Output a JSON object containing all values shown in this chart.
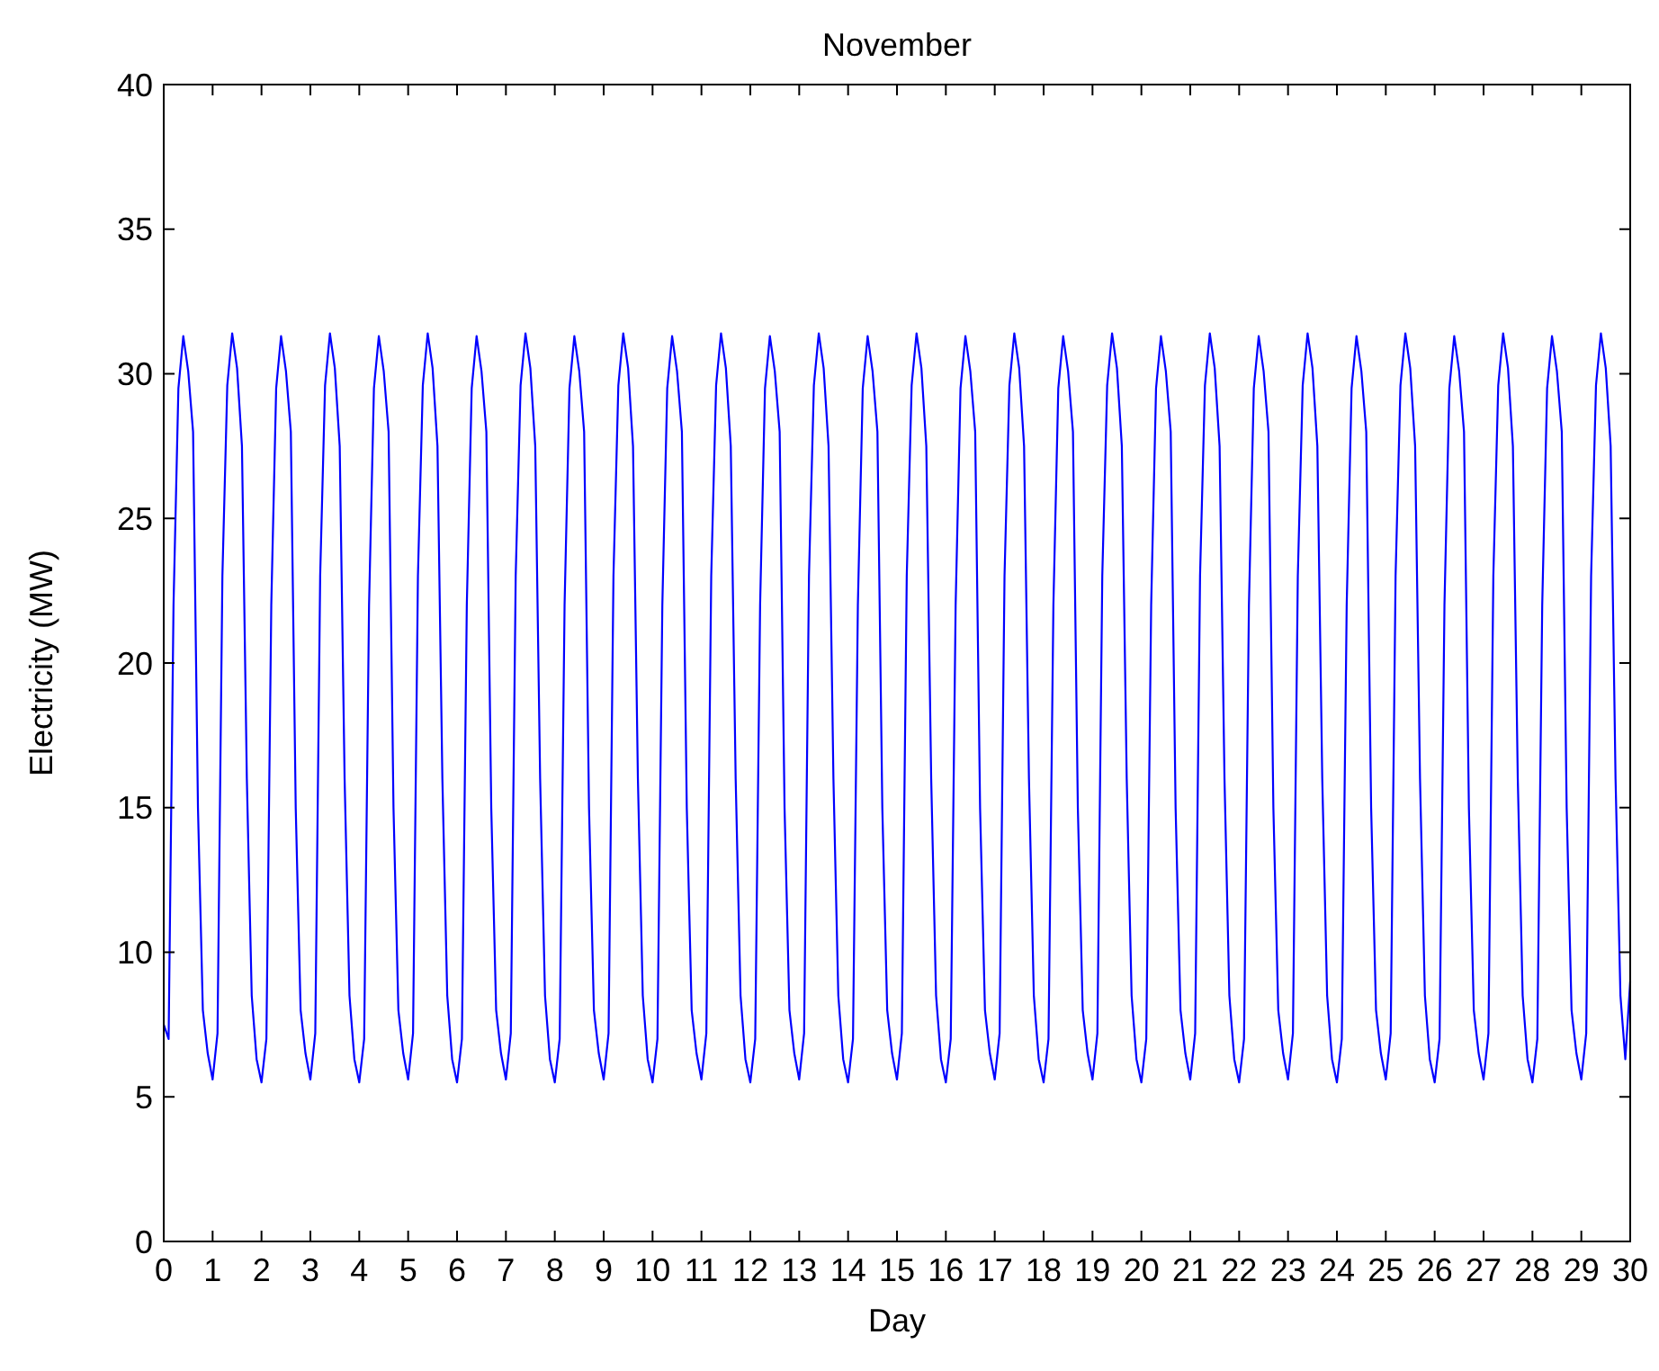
{
  "chart_data": {
    "type": "line",
    "title": "November",
    "xlabel": "Day",
    "ylabel": "Electricity (MW)",
    "xlim": [
      0,
      30
    ],
    "xticks": [
      0,
      1,
      2,
      3,
      4,
      5,
      6,
      7,
      8,
      9,
      10,
      11,
      12,
      13,
      14,
      15,
      16,
      17,
      18,
      19,
      20,
      21,
      22,
      23,
      24,
      25,
      26,
      27,
      28,
      29,
      30
    ],
    "ylim": [
      0,
      40
    ],
    "yticks": [
      0,
      5,
      10,
      15,
      20,
      25,
      30,
      35,
      40
    ],
    "grid": false,
    "line_style": "solid",
    "marker": "none",
    "series": [
      {
        "color": "#0000ff",
        "x": [
          0,
          0.1,
          0.2,
          0.3,
          0.4,
          0.5,
          0.6,
          0.7,
          0.8,
          0.9,
          1,
          1.1,
          1.2,
          1.3,
          1.4,
          1.5,
          1.6,
          1.7,
          1.8,
          1.9,
          2,
          2.1,
          2.2,
          2.3,
          2.4,
          2.5,
          2.6,
          2.7,
          2.8,
          2.9,
          3,
          3.1,
          3.2,
          3.3,
          3.4,
          3.5,
          3.6,
          3.7,
          3.8,
          3.9,
          4,
          4.1,
          4.2,
          4.3,
          4.4,
          4.5,
          4.6,
          4.7,
          4.8,
          4.9,
          5,
          5.1,
          5.2,
          5.3,
          5.4,
          5.5,
          5.6,
          5.7,
          5.8,
          5.9,
          6,
          6.1,
          6.2,
          6.3,
          6.4,
          6.5,
          6.6,
          6.7,
          6.8,
          6.9,
          7,
          7.1,
          7.2,
          7.3,
          7.4,
          7.5,
          7.6,
          7.7,
          7.8,
          7.9,
          8,
          8.1,
          8.2,
          8.3,
          8.4,
          8.5,
          8.6,
          8.7,
          8.8,
          8.9,
          9,
          9.1,
          9.2,
          9.3,
          9.4,
          9.5,
          9.6,
          9.7,
          9.8,
          9.9,
          10,
          10.1,
          10.2,
          10.3,
          10.4,
          10.5,
          10.6,
          10.7,
          10.8,
          10.9,
          11,
          11.1,
          11.2,
          11.3,
          11.4,
          11.5,
          11.6,
          11.7,
          11.8,
          11.9,
          12,
          12.1,
          12.2,
          12.3,
          12.4,
          12.5,
          12.6,
          12.7,
          12.8,
          12.9,
          13,
          13.1,
          13.2,
          13.3,
          13.4,
          13.5,
          13.6,
          13.7,
          13.8,
          13.9,
          14,
          14.1,
          14.2,
          14.3,
          14.4,
          14.5,
          14.6,
          14.7,
          14.8,
          14.9,
          15,
          15.1,
          15.2,
          15.3,
          15.4,
          15.5,
          15.6,
          15.7,
          15.8,
          15.9,
          16,
          16.1,
          16.2,
          16.3,
          16.4,
          16.5,
          16.6,
          16.7,
          16.8,
          16.9,
          17,
          17.1,
          17.2,
          17.3,
          17.4,
          17.5,
          17.6,
          17.7,
          17.8,
          17.9,
          18,
          18.1,
          18.2,
          18.3,
          18.4,
          18.5,
          18.6,
          18.7,
          18.8,
          18.9,
          19,
          19.1,
          19.2,
          19.3,
          19.4,
          19.5,
          19.6,
          19.7,
          19.8,
          19.9,
          20,
          20.1,
          20.2,
          20.3,
          20.4,
          20.5,
          20.6,
          20.7,
          20.8,
          20.9,
          21,
          21.1,
          21.2,
          21.3,
          21.4,
          21.5,
          21.6,
          21.7,
          21.8,
          21.9,
          22,
          22.1,
          22.2,
          22.3,
          22.4,
          22.5,
          22.6,
          22.7,
          22.8,
          22.9,
          23,
          23.1,
          23.2,
          23.3,
          23.4,
          23.5,
          23.6,
          23.7,
          23.8,
          23.9,
          24,
          24.1,
          24.2,
          24.3,
          24.4,
          24.5,
          24.6,
          24.7,
          24.8,
          24.9,
          25,
          25.1,
          25.2,
          25.3,
          25.4,
          25.5,
          25.6,
          25.7,
          25.8,
          25.9,
          26,
          26.1,
          26.2,
          26.3,
          26.4,
          26.5,
          26.6,
          26.7,
          26.8,
          26.9,
          27,
          27.1,
          27.2,
          27.3,
          27.4,
          27.5,
          27.6,
          27.7,
          27.8,
          27.9,
          28,
          28.1,
          28.2,
          28.3,
          28.4,
          28.5,
          28.6,
          28.7,
          28.8,
          28.9,
          29,
          29.1,
          29.2,
          29.3,
          29.4,
          29.5,
          29.6,
          29.7,
          29.8,
          29.9,
          30
        ],
        "values": [
          7.5,
          7,
          22,
          29.5,
          31.3,
          30.1,
          28,
          15,
          8,
          6.5,
          5.6,
          7.2,
          23,
          29.6,
          31.4,
          30.2,
          27.5,
          16,
          8.5,
          6.3,
          5.5,
          7,
          22,
          29.5,
          31.3,
          30.1,
          28,
          15,
          8,
          6.5,
          5.6,
          7.2,
          23,
          29.6,
          31.4,
          30.2,
          27.5,
          16,
          8.5,
          6.3,
          5.5,
          7,
          22,
          29.5,
          31.3,
          30.1,
          28,
          15,
          8,
          6.5,
          5.6,
          7.2,
          23,
          29.6,
          31.4,
          30.2,
          27.5,
          16,
          8.5,
          6.3,
          5.5,
          7,
          22,
          29.5,
          31.3,
          30.1,
          28,
          15,
          8,
          6.5,
          5.6,
          7.2,
          23,
          29.6,
          31.4,
          30.2,
          27.5,
          16,
          8.5,
          6.3,
          5.5,
          7,
          22,
          29.5,
          31.3,
          30.1,
          28,
          15,
          8,
          6.5,
          5.6,
          7.2,
          23,
          29.6,
          31.4,
          30.2,
          27.5,
          16,
          8.5,
          6.3,
          5.5,
          7,
          22,
          29.5,
          31.3,
          30.1,
          28,
          15,
          8,
          6.5,
          5.6,
          7.2,
          23,
          29.6,
          31.4,
          30.2,
          27.5,
          16,
          8.5,
          6.3,
          5.5,
          7,
          22,
          29.5,
          31.3,
          30.1,
          28,
          15,
          8,
          6.5,
          5.6,
          7.2,
          23,
          29.6,
          31.4,
          30.2,
          27.5,
          16,
          8.5,
          6.3,
          5.5,
          7,
          22,
          29.5,
          31.3,
          30.1,
          28,
          15,
          8,
          6.5,
          5.6,
          7.2,
          23,
          29.6,
          31.4,
          30.2,
          27.5,
          16,
          8.5,
          6.3,
          5.5,
          7,
          22,
          29.5,
          31.3,
          30.1,
          28,
          15,
          8,
          6.5,
          5.6,
          7.2,
          23,
          29.6,
          31.4,
          30.2,
          27.5,
          16,
          8.5,
          6.3,
          5.5,
          7,
          22,
          29.5,
          31.3,
          30.1,
          28,
          15,
          8,
          6.5,
          5.6,
          7.2,
          23,
          29.6,
          31.4,
          30.2,
          27.5,
          16,
          8.5,
          6.3,
          5.5,
          7,
          22,
          29.5,
          31.3,
          30.1,
          28,
          15,
          8,
          6.5,
          5.6,
          7.2,
          23,
          29.6,
          31.4,
          30.2,
          27.5,
          16,
          8.5,
          6.3,
          5.5,
          7,
          22,
          29.5,
          31.3,
          30.1,
          28,
          15,
          8,
          6.5,
          5.6,
          7.2,
          23,
          29.6,
          31.4,
          30.2,
          27.5,
          16,
          8.5,
          6.3,
          5.5,
          7,
          22,
          29.5,
          31.3,
          30.1,
          28,
          15,
          8,
          6.5,
          5.6,
          7.2,
          23,
          29.6,
          31.4,
          30.2,
          27.5,
          16,
          8.5,
          6.3,
          5.5,
          7,
          22,
          29.5,
          31.3,
          30.1,
          28,
          15,
          8,
          6.5,
          5.6,
          7.2,
          23,
          29.6,
          31.4,
          30.2,
          27.5,
          16,
          8.5,
          6.3,
          5.5,
          7,
          22,
          29.5,
          31.3,
          30.1,
          28,
          15,
          8,
          6.5,
          5.6,
          7.2,
          23,
          29.6,
          31.4,
          30.2,
          27.5,
          16,
          8.5,
          6.3,
          9
        ]
      }
    ]
  }
}
